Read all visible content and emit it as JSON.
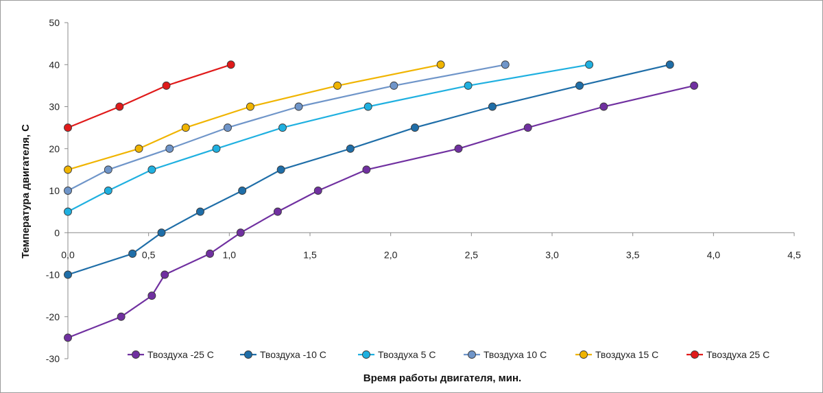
{
  "chart_data": {
    "type": "line",
    "title": "",
    "xlabel": "Время работы двигателя, мин.",
    "ylabel": "Температура  двигателя,  С",
    "xlim": [
      0,
      4.5
    ],
    "ylim": [
      -30,
      50
    ],
    "xticks": [
      0,
      0.5,
      1.0,
      1.5,
      2.0,
      2.5,
      3.0,
      3.5,
      4.0,
      4.5
    ],
    "xtick_labels": [
      "0,0",
      "0,5",
      "1,0",
      "1,5",
      "2,0",
      "2,5",
      "3,0",
      "3,5",
      "4,0",
      "4,5"
    ],
    "yticks": [
      -30,
      -20,
      -10,
      0,
      10,
      20,
      30,
      40,
      50
    ],
    "ytick_labels": [
      "-30",
      "-20",
      "-10",
      "0",
      "10",
      "20",
      "30",
      "40",
      "50"
    ],
    "grid": false,
    "legend_position": "bottom",
    "series": [
      {
        "name": "Твоздуха -25 С",
        "color": "#7030a0",
        "x": [
          0.0,
          0.33,
          0.52,
          0.6,
          0.88,
          1.07,
          1.3,
          1.55,
          1.85,
          2.42,
          2.85,
          3.32,
          3.88
        ],
        "y": [
          -25,
          -20,
          -15,
          -10,
          -5,
          0,
          5,
          10,
          15,
          20,
          25,
          30,
          35
        ]
      },
      {
        "name": "Твоздуха -10 С",
        "color": "#1f6ea8",
        "x": [
          0.0,
          0.4,
          0.58,
          0.82,
          1.08,
          1.32,
          1.75,
          2.15,
          2.63,
          3.17,
          3.73
        ],
        "y": [
          -10,
          -5,
          0,
          5,
          10,
          15,
          20,
          25,
          30,
          35,
          40
        ]
      },
      {
        "name": "Твоздуха 5 С",
        "color": "#1fb0e0",
        "x": [
          0.0,
          0.25,
          0.52,
          0.92,
          1.33,
          1.86,
          2.48,
          3.23
        ],
        "y": [
          5,
          10,
          15,
          20,
          25,
          30,
          35,
          40
        ]
      },
      {
        "name": "Твоздуха 10 С",
        "color": "#6f95c9",
        "x": [
          0.0,
          0.25,
          0.63,
          0.99,
          1.43,
          2.02,
          2.71
        ],
        "y": [
          10,
          15,
          20,
          25,
          30,
          35,
          40
        ]
      },
      {
        "name": "Твоздуха 15 С",
        "color": "#f0b400",
        "x": [
          0.0,
          0.44,
          0.73,
          1.13,
          1.67,
          2.31
        ],
        "y": [
          15,
          20,
          25,
          30,
          35,
          40
        ]
      },
      {
        "name": "Твоздуха 25 С",
        "color": "#e01a1a",
        "x": [
          0.0,
          0.32,
          0.61,
          1.01
        ],
        "y": [
          25,
          30,
          35,
          40
        ]
      }
    ]
  }
}
